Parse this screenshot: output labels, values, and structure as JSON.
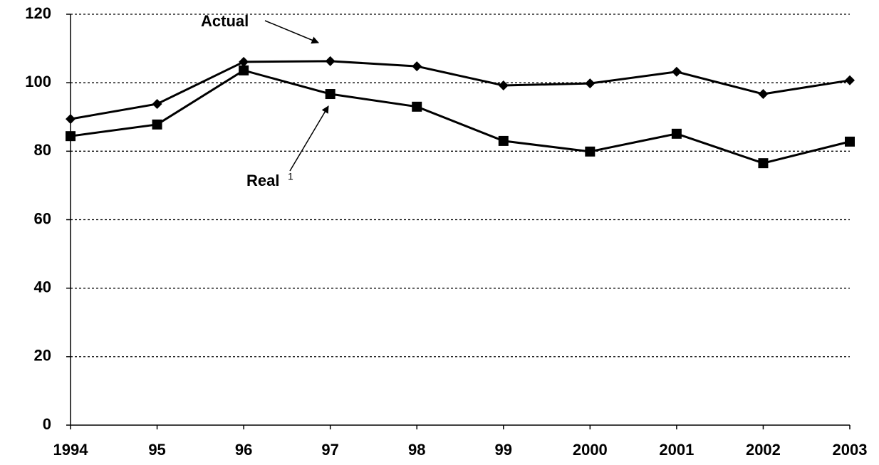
{
  "chart_data": {
    "type": "line",
    "categories": [
      "1994",
      "95",
      "96",
      "97",
      "98",
      "99",
      "2000",
      "2001",
      "2002",
      "2003"
    ],
    "series": [
      {
        "name": "Actual",
        "color": "#000000",
        "marker": "diamond",
        "values": [
          89.4,
          93.8,
          106.1,
          106.3,
          104.8,
          99.2,
          99.8,
          103.2,
          96.7,
          100.7
        ]
      },
      {
        "name": "Real",
        "color": "#000000",
        "marker": "square",
        "values": [
          84.4,
          87.8,
          103.6,
          96.7,
          93.0,
          83.0,
          79.9,
          85.1,
          76.5,
          82.8
        ]
      }
    ],
    "annotations": [
      {
        "text": "Actual"
      },
      {
        "text": "Real",
        "superscript": "1"
      }
    ],
    "ylim": [
      0,
      120
    ],
    "yticks": [
      0,
      20,
      40,
      60,
      80,
      100,
      120
    ],
    "grid": true
  }
}
